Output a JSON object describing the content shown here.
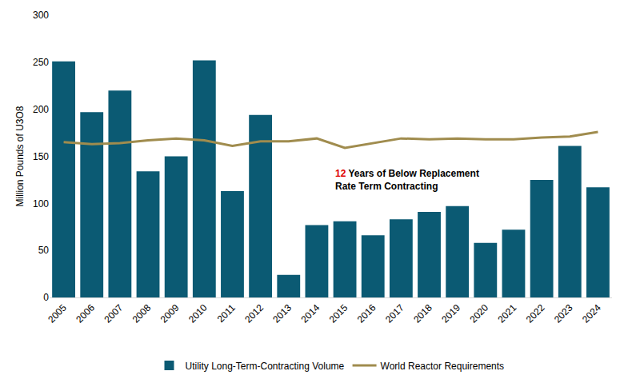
{
  "chart_data": {
    "type": "bar",
    "y_label": "Million Pounds of U3O8",
    "categories": [
      "2005",
      "2006",
      "2007",
      "2008",
      "2009",
      "2010",
      "2011",
      "2012",
      "2013",
      "2014",
      "2015",
      "2016",
      "2017",
      "2018",
      "2019",
      "2020",
      "2021",
      "2022",
      "2023",
      "2024"
    ],
    "series": [
      {
        "name": "Utility Long-Term-Contracting Volume",
        "type": "bar",
        "color": "#0b5a73",
        "values": [
          251,
          197,
          220,
          134,
          150,
          252,
          113,
          194,
          24,
          77,
          81,
          66,
          83,
          91,
          97,
          58,
          72,
          125,
          161,
          117
        ]
      },
      {
        "name": "World Reactor Requirements",
        "type": "line",
        "color": "#a08c4e",
        "values": [
          165,
          163,
          164,
          167,
          169,
          167,
          161,
          166,
          166,
          169,
          159,
          164,
          169,
          168,
          169,
          168,
          168,
          170,
          171,
          176
        ]
      }
    ],
    "annotation": {
      "highlight": "12",
      "highlight_color": "#e00000",
      "lines": [
        " Years of Below Replacement",
        "Rate Term Contracting"
      ]
    },
    "ylim": [
      0,
      300
    ],
    "yticks": [
      0,
      50,
      100,
      150,
      200,
      250,
      300
    ],
    "grid": false,
    "legend": "bottom"
  }
}
